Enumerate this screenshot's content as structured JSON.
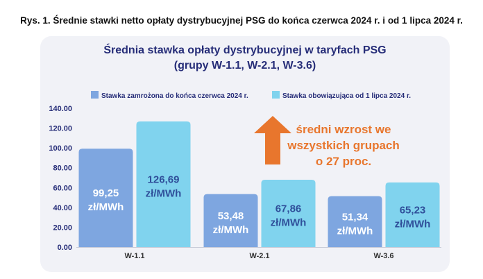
{
  "caption": "Rys. 1. Średnie stawki netto opłaty dystrybucyjnej PSG do końca czerwca 2024 r. i od 1 lipca 2024 r.",
  "chart_data": {
    "type": "bar",
    "title": "Średnia stawka opłaty dystrybucyjnej w taryfach PSG",
    "subtitle": "(grupy W-1.1, W-2.1, W-3.6)",
    "categories": [
      "W-1.1",
      "W-2.1",
      "W-3.6"
    ],
    "series": [
      {
        "name": "Stawka zamrożona do końca czerwca 2024 r.",
        "values": [
          99.25,
          53.48,
          51.34
        ],
        "color": "#7ea6e0",
        "labels": [
          {
            "num": "99,25",
            "unit": "zł/MWh"
          },
          {
            "num": "53,48",
            "unit": "zł/MWh"
          },
          {
            "num": "51,34",
            "unit": "zł/MWh"
          }
        ]
      },
      {
        "name": "Stawka obowiązująca od 1 lipca 2024 r.",
        "values": [
          126.69,
          67.86,
          65.23
        ],
        "color": "#80d3ee",
        "labels": [
          {
            "num": "126,69",
            "unit": "zł/MWh"
          },
          {
            "num": "67,86",
            "unit": "zł/MWh"
          },
          {
            "num": "65,23",
            "unit": "zł/MWh"
          }
        ]
      }
    ],
    "ylim": [
      0,
      140
    ],
    "yticks": [
      "0.00",
      "20.00",
      "40.00",
      "60.00",
      "80.00",
      "100.00",
      "120.00",
      "140.00"
    ],
    "legend_position": "top",
    "annotation": {
      "lines": [
        "średni wzrost we",
        "wszystkich grupach",
        "o 27 proc."
      ],
      "color": "#e8762d"
    },
    "label_colors": {
      "dark_bar_text": "#ffffff",
      "light_bar_text": "#2f4f9a",
      "title": "#262d78",
      "axis_text": "#262d78"
    }
  }
}
